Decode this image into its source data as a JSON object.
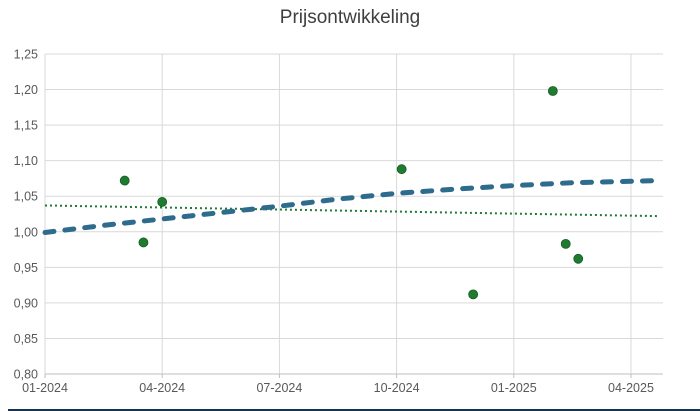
{
  "chart_data": {
    "type": "scatter",
    "title": "Prijsontwikkeling",
    "x_axis": {
      "tick_labels": [
        "01-2024",
        "04-2024",
        "07-2024",
        "10-2024",
        "01-2025",
        "04-2025"
      ],
      "tick_positions_months": [
        0,
        3,
        6,
        9,
        12,
        15
      ],
      "range_months": [
        0,
        15.82
      ],
      "grid": true
    },
    "y_axis": {
      "tick_labels": [
        "1,25",
        "1,20",
        "1,15",
        "1,10",
        "1,05",
        "1,00",
        "0,95",
        "0,90",
        "0,85",
        "0,80"
      ],
      "tick_values": [
        1.25,
        1.2,
        1.15,
        1.1,
        1.05,
        1.0,
        0.95,
        0.9,
        0.85,
        0.8
      ],
      "range": [
        0.8,
        1.25
      ],
      "grid": true
    },
    "points": [
      {
        "x_months": 2.04,
        "y": 1.072
      },
      {
        "x_months": 2.52,
        "y": 0.985
      },
      {
        "x_months": 3.0,
        "y": 1.042
      },
      {
        "x_months": 9.13,
        "y": 1.088
      },
      {
        "x_months": 10.96,
        "y": 0.912
      },
      {
        "x_months": 13.0,
        "y": 1.198
      },
      {
        "x_months": 13.33,
        "y": 0.983
      },
      {
        "x_months": 13.65,
        "y": 0.962
      }
    ],
    "trendlines": [
      {
        "name": "blue-dashed-trend",
        "style": "dashed",
        "color": "#2e6c8e",
        "width": 5,
        "points_months": [
          [
            0,
            0.999
          ],
          [
            1.5,
            1.009
          ],
          [
            3,
            1.018
          ],
          [
            4.5,
            1.027
          ],
          [
            6,
            1.036
          ],
          [
            7.5,
            1.046
          ],
          [
            9,
            1.054
          ],
          [
            10.5,
            1.06
          ],
          [
            12,
            1.065
          ],
          [
            13.5,
            1.069
          ],
          [
            15,
            1.071
          ],
          [
            15.72,
            1.072
          ]
        ]
      },
      {
        "name": "green-dotted-trend",
        "style": "dotted",
        "color": "#1f7a33",
        "width": 2,
        "points_months": [
          [
            0,
            1.037
          ],
          [
            15.72,
            1.022
          ]
        ]
      }
    ],
    "legend": "none",
    "colors": {
      "point": "#1e7b30",
      "point_edge": "#155c24",
      "grid": "#d9d9d9",
      "axis": "#bfbfbf",
      "tick_label": "#595959",
      "title": "#3f3f3f",
      "bottom_bar": "#16334f",
      "background": "#ffffff"
    }
  }
}
